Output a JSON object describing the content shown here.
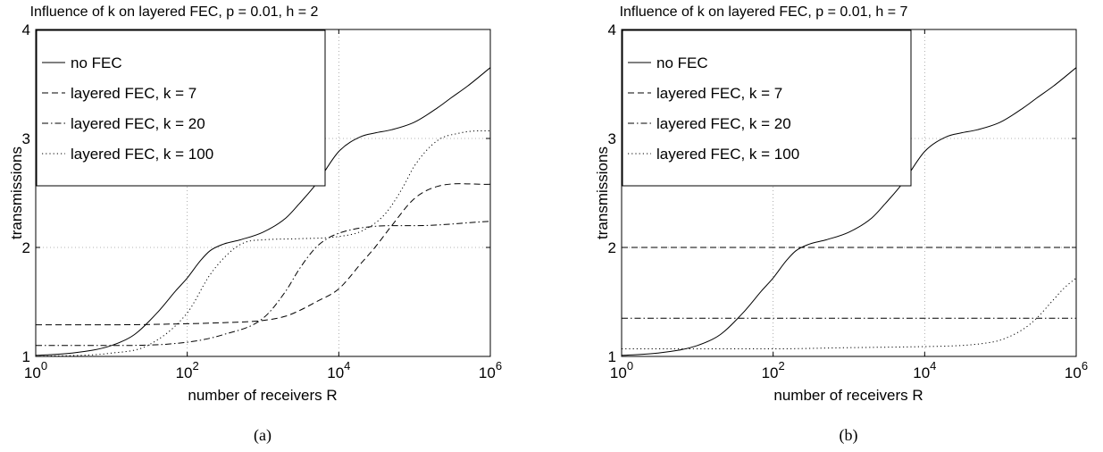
{
  "chart_data": [
    {
      "type": "line",
      "title": "Influence of k on layered FEC, p = 0.01, h = 2",
      "caption": "(a)",
      "xlabel": "number of receivers R",
      "ylabel": "transmissions",
      "xscale": "log",
      "xlim": [
        1,
        1000000
      ],
      "ylim": [
        1,
        4
      ],
      "xticks": [
        {
          "base": "10",
          "exp": "0"
        },
        {
          "base": "10",
          "exp": "2"
        },
        {
          "base": "10",
          "exp": "4"
        },
        {
          "base": "10",
          "exp": "6"
        }
      ],
      "yticks": [
        "1",
        "2",
        "3",
        "4"
      ],
      "grid": true,
      "legend_position": "top-left",
      "series": [
        {
          "name": "no FEC",
          "dash": "solid",
          "x": [
            1,
            3,
            10,
            20,
            40,
            70,
            100,
            150,
            200,
            300,
            500,
            1000,
            2000,
            3000,
            5000,
            10000,
            20000,
            30000,
            50000,
            100000,
            200000,
            300000,
            500000,
            1000000
          ],
          "y": [
            1.01,
            1.03,
            1.1,
            1.2,
            1.4,
            1.6,
            1.72,
            1.88,
            1.97,
            2.03,
            2.07,
            2.14,
            2.27,
            2.4,
            2.58,
            2.88,
            3.02,
            3.05,
            3.08,
            3.15,
            3.28,
            3.37,
            3.48,
            3.65
          ]
        },
        {
          "name": "layered FEC, k = 7",
          "dash": "dashed",
          "x": [
            1,
            10,
            100,
            300,
            1000,
            2000,
            3000,
            5000,
            10000,
            20000,
            30000,
            50000,
            100000,
            200000,
            1000000
          ],
          "y": [
            1.29,
            1.29,
            1.3,
            1.31,
            1.33,
            1.37,
            1.42,
            1.5,
            1.62,
            1.86,
            2.0,
            2.2,
            2.45,
            2.56,
            2.58
          ]
        },
        {
          "name": "layered FEC, k = 20",
          "dash": "dashdot",
          "x": [
            1,
            10,
            100,
            300,
            1000,
            2000,
            3000,
            5000,
            7000,
            10000,
            20000,
            50000,
            100000,
            1000000
          ],
          "y": [
            1.1,
            1.1,
            1.13,
            1.2,
            1.35,
            1.6,
            1.8,
            2.0,
            2.08,
            2.13,
            2.18,
            2.2,
            2.2,
            2.24
          ]
        },
        {
          "name": "layered FEC, k = 100",
          "dash": "dotted",
          "x": [
            1,
            10,
            30,
            100,
            200,
            400,
            600,
            1000,
            3000,
            10000,
            20000,
            40000,
            70000,
            100000,
            200000,
            400000,
            700000,
            1000000
          ],
          "y": [
            1.0,
            1.03,
            1.1,
            1.4,
            1.75,
            1.98,
            2.05,
            2.07,
            2.08,
            2.1,
            2.15,
            2.3,
            2.55,
            2.75,
            2.98,
            3.05,
            3.07,
            3.07
          ]
        }
      ]
    },
    {
      "type": "line",
      "title": "Influence of k on layered FEC, p = 0.01, h = 7",
      "caption": "(b)",
      "xlabel": "number of receivers R",
      "ylabel": "transmissions",
      "xscale": "log",
      "xlim": [
        1,
        1000000
      ],
      "ylim": [
        1,
        4
      ],
      "xticks": [
        {
          "base": "10",
          "exp": "0"
        },
        {
          "base": "10",
          "exp": "2"
        },
        {
          "base": "10",
          "exp": "4"
        },
        {
          "base": "10",
          "exp": "6"
        }
      ],
      "yticks": [
        "1",
        "2",
        "3",
        "4"
      ],
      "grid": true,
      "legend_position": "top-left",
      "series": [
        {
          "name": "no FEC",
          "dash": "solid",
          "x": [
            1,
            3,
            10,
            20,
            40,
            70,
            100,
            150,
            200,
            300,
            500,
            1000,
            2000,
            3000,
            5000,
            10000,
            20000,
            30000,
            50000,
            100000,
            200000,
            300000,
            500000,
            1000000
          ],
          "y": [
            1.01,
            1.03,
            1.1,
            1.2,
            1.4,
            1.6,
            1.72,
            1.88,
            1.97,
            2.03,
            2.07,
            2.14,
            2.27,
            2.4,
            2.58,
            2.88,
            3.02,
            3.05,
            3.08,
            3.15,
            3.28,
            3.37,
            3.48,
            3.65
          ]
        },
        {
          "name": "layered FEC, k = 7",
          "dash": "dashed",
          "x": [
            1,
            1000000
          ],
          "y": [
            2.0,
            2.0
          ]
        },
        {
          "name": "layered FEC, k = 20",
          "dash": "dashdot",
          "x": [
            1,
            1000000
          ],
          "y": [
            1.35,
            1.35
          ]
        },
        {
          "name": "layered FEC, k = 100",
          "dash": "dotted",
          "x": [
            1,
            100,
            1000,
            10000,
            30000,
            60000,
            100000,
            200000,
            300000,
            500000,
            700000,
            1000000
          ],
          "y": [
            1.07,
            1.07,
            1.08,
            1.09,
            1.1,
            1.12,
            1.15,
            1.25,
            1.35,
            1.52,
            1.63,
            1.72
          ]
        }
      ]
    }
  ]
}
